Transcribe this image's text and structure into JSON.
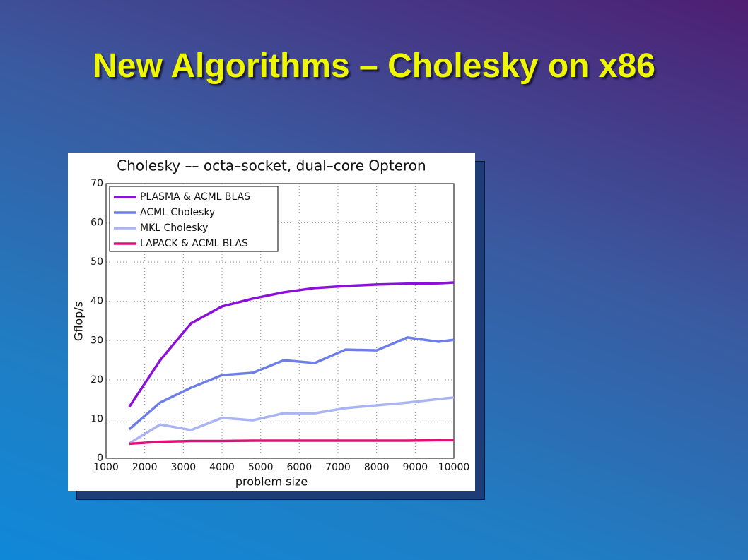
{
  "slide_title": "New Algorithms – Cholesky on x86",
  "chart_data": {
    "type": "line",
    "title": "Cholesky –– octa–socket, dual–core Opteron",
    "xlabel": "problem size",
    "ylabel": "Gflop/s",
    "x": [
      1600,
      2400,
      3200,
      4000,
      4800,
      5600,
      6400,
      7200,
      8000,
      8800,
      9600,
      10000
    ],
    "series": [
      {
        "name": "PLASMA & ACML BLAS",
        "color": "#8b10d8",
        "values": [
          13.1,
          25,
          34.4,
          38.7,
          40.7,
          42.3,
          43.4,
          43.9,
          44.3,
          44.5,
          44.6,
          44.8
        ]
      },
      {
        "name": "ACML Cholesky",
        "color": "#6d7ee8",
        "values": [
          7.4,
          14.2,
          18,
          21.2,
          21.8,
          25,
          24.3,
          27.7,
          27.5,
          30.8,
          29.7,
          30.2
        ]
      },
      {
        "name": "MKL Cholesky",
        "color": "#aab4f2",
        "values": [
          3.8,
          8.6,
          7.2,
          10.3,
          9.7,
          11.5,
          11.5,
          12.8,
          13.5,
          14.2,
          15.1,
          15.5
        ]
      },
      {
        "name": "LAPACK & ACML BLAS",
        "color": "#e0107a",
        "values": [
          3.7,
          4.2,
          4.4,
          4.4,
          4.5,
          4.5,
          4.5,
          4.5,
          4.5,
          4.5,
          4.6,
          4.6
        ]
      }
    ],
    "xlim": [
      1000,
      10000
    ],
    "ylim": [
      0,
      70
    ],
    "xticks": [
      1000,
      2000,
      3000,
      4000,
      5000,
      6000,
      7000,
      8000,
      9000,
      10000
    ],
    "yticks": [
      0,
      10,
      20,
      30,
      40,
      50,
      60,
      70
    ],
    "grid": true,
    "legend": "upper left"
  }
}
